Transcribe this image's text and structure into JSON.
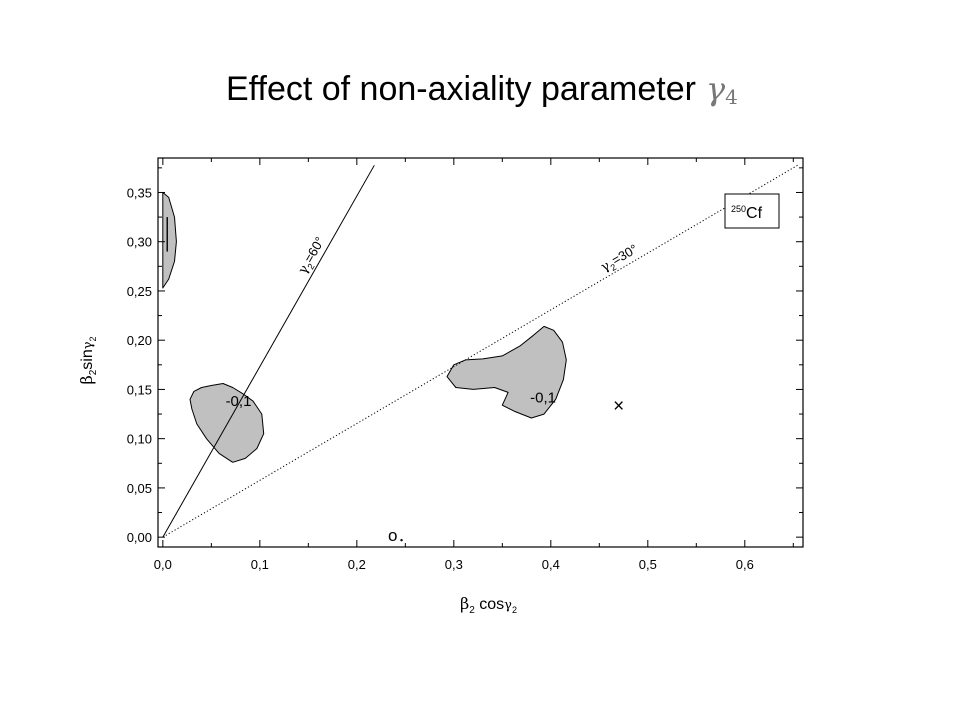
{
  "slide": {
    "title": "Effect of non-axiality parameter",
    "title_symbol": "γ",
    "title_symbol_sub": "4"
  },
  "chart_data": {
    "type": "contour",
    "xlabel": {
      "symbol": "β",
      "sub": "2",
      "func": " cos",
      "arg": "γ",
      "arg_sub": "2"
    },
    "ylabel": {
      "symbol": "β",
      "sub": "2",
      "func": "sin",
      "arg": "γ",
      "arg_sub": "2"
    },
    "xlim": [
      -0.005,
      0.66
    ],
    "ylim": [
      -0.01,
      0.385
    ],
    "xticks": [
      "0,0",
      "0,1",
      "0,2",
      "0,3",
      "0,4",
      "0,5",
      "0,6"
    ],
    "xtick_values": [
      0.0,
      0.1,
      0.2,
      0.3,
      0.4,
      0.5,
      0.6
    ],
    "yticks": [
      "0,00",
      "0,05",
      "0,10",
      "0,15",
      "0,20",
      "0,25",
      "0,30",
      "0,35"
    ],
    "ytick_values": [
      0.0,
      0.05,
      0.1,
      0.15,
      0.2,
      0.25,
      0.3,
      0.35
    ],
    "nucleus_label": {
      "mass": "250",
      "element": "Cf"
    },
    "lines": [
      {
        "label_symbol": "γ",
        "label_sub": "2",
        "label_text": "=60°",
        "style": "solid",
        "slope": 1.732,
        "x": [
          0.0,
          0.218
        ]
      },
      {
        "label_symbol": "γ",
        "label_sub": "2",
        "label_text": "=30°",
        "style": "dotted",
        "slope": 0.577,
        "x": [
          0.0,
          0.655
        ]
      }
    ],
    "contours": [
      {
        "label": "-0,1",
        "level": -0.1,
        "fill": "#c0c0c0",
        "points": [
          [
            0.028,
            0.14
          ],
          [
            0.03,
            0.13
          ],
          [
            0.035,
            0.115
          ],
          [
            0.045,
            0.1
          ],
          [
            0.058,
            0.085
          ],
          [
            0.072,
            0.076
          ],
          [
            0.085,
            0.08
          ],
          [
            0.097,
            0.09
          ],
          [
            0.104,
            0.105
          ],
          [
            0.102,
            0.125
          ],
          [
            0.093,
            0.138
          ],
          [
            0.082,
            0.146
          ],
          [
            0.072,
            0.152
          ],
          [
            0.062,
            0.156
          ],
          [
            0.05,
            0.154
          ],
          [
            0.04,
            0.152
          ],
          [
            0.032,
            0.148
          ]
        ],
        "label_at": [
          0.078,
          0.138
        ]
      },
      {
        "label": "-0,1",
        "level": -0.1,
        "fill": "#c0c0c0",
        "points": [
          [
            0.293,
            0.163
          ],
          [
            0.3,
            0.175
          ],
          [
            0.312,
            0.18
          ],
          [
            0.33,
            0.181
          ],
          [
            0.35,
            0.184
          ],
          [
            0.368,
            0.194
          ],
          [
            0.382,
            0.205
          ],
          [
            0.393,
            0.214
          ],
          [
            0.403,
            0.21
          ],
          [
            0.412,
            0.198
          ],
          [
            0.416,
            0.18
          ],
          [
            0.413,
            0.16
          ],
          [
            0.405,
            0.14
          ],
          [
            0.393,
            0.125
          ],
          [
            0.38,
            0.121
          ],
          [
            0.362,
            0.128
          ],
          [
            0.35,
            0.134
          ],
          [
            0.356,
            0.147
          ],
          [
            0.342,
            0.152
          ],
          [
            0.32,
            0.15
          ],
          [
            0.302,
            0.152
          ]
        ],
        "label_at": [
          0.392,
          0.142
        ]
      },
      {
        "label": "",
        "level": -0.1,
        "fill": "#c0c0c0",
        "points": [
          [
            0.0,
            0.35
          ],
          [
            0.006,
            0.345
          ],
          [
            0.012,
            0.325
          ],
          [
            0.014,
            0.3
          ],
          [
            0.012,
            0.28
          ],
          [
            0.006,
            0.262
          ],
          [
            0.0,
            0.253
          ]
        ],
        "label_at": null
      }
    ],
    "markers": [
      {
        "symbol": "×",
        "x": 0.47,
        "y": 0.133
      },
      {
        "symbol": "o",
        "x": 0.237,
        "y": 0.002
      }
    ]
  }
}
